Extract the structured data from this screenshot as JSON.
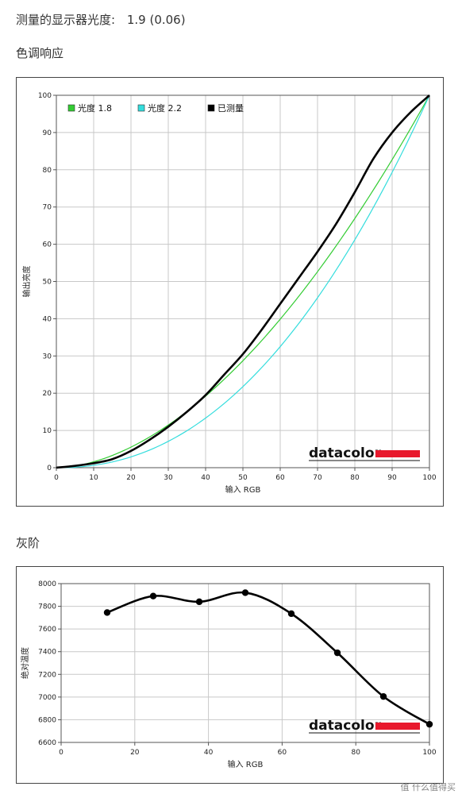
{
  "header": {
    "measured_label": "测量的显示器光度:",
    "measured_value": "1.9 (0.06)",
    "tone_title": "色调响应",
    "gray_title": "灰阶"
  },
  "brand": {
    "logo_text": "datacolor",
    "logo_color": "#e8182c"
  },
  "watermark": "值 什么值得买",
  "chart_data": [
    {
      "id": "tone-response",
      "type": "line",
      "xlabel": "输入 RGB",
      "ylabel": "输出亮度",
      "xlim": [
        0,
        100
      ],
      "ylim": [
        0,
        100
      ],
      "xticks": [
        0,
        10,
        20,
        30,
        40,
        50,
        60,
        70,
        80,
        90,
        100
      ],
      "yticks": [
        0,
        10,
        20,
        30,
        40,
        50,
        60,
        70,
        80,
        90,
        100
      ],
      "grid": true,
      "legend_position": "top-left",
      "series": [
        {
          "name": "光度 1.8",
          "color": "#33cc33",
          "gamma": 1.8
        },
        {
          "name": "光度 2.2",
          "color": "#33dddd",
          "gamma": 2.2
        },
        {
          "name": "已测量",
          "color": "#000000",
          "x": [
            0,
            5,
            10,
            15,
            20,
            25,
            30,
            35,
            40,
            45,
            50,
            55,
            60,
            65,
            70,
            75,
            80,
            85,
            90,
            95,
            100
          ],
          "y": [
            0,
            0.5,
            1.2,
            2.3,
            4.5,
            7.5,
            11,
            15,
            19.5,
            25,
            30.5,
            37,
            44,
            51,
            58,
            65.5,
            74,
            83,
            90,
            95.5,
            100
          ]
        }
      ]
    },
    {
      "id": "gray-scale",
      "type": "line",
      "xlabel": "输入 RGB",
      "ylabel": "绝对温度",
      "xlim": [
        0,
        100
      ],
      "ylim": [
        6600,
        8000
      ],
      "xticks": [
        0,
        20,
        40,
        60,
        80,
        100
      ],
      "yticks": [
        6600,
        6800,
        7000,
        7200,
        7400,
        7600,
        7800,
        8000
      ],
      "grid": true,
      "series": [
        {
          "color": "#000000",
          "x": [
            12.5,
            25,
            37.5,
            50,
            62.5,
            75,
            87.5,
            100
          ],
          "y": [
            7745,
            7890,
            7840,
            7920,
            7735,
            7390,
            7005,
            6760
          ]
        }
      ]
    }
  ]
}
